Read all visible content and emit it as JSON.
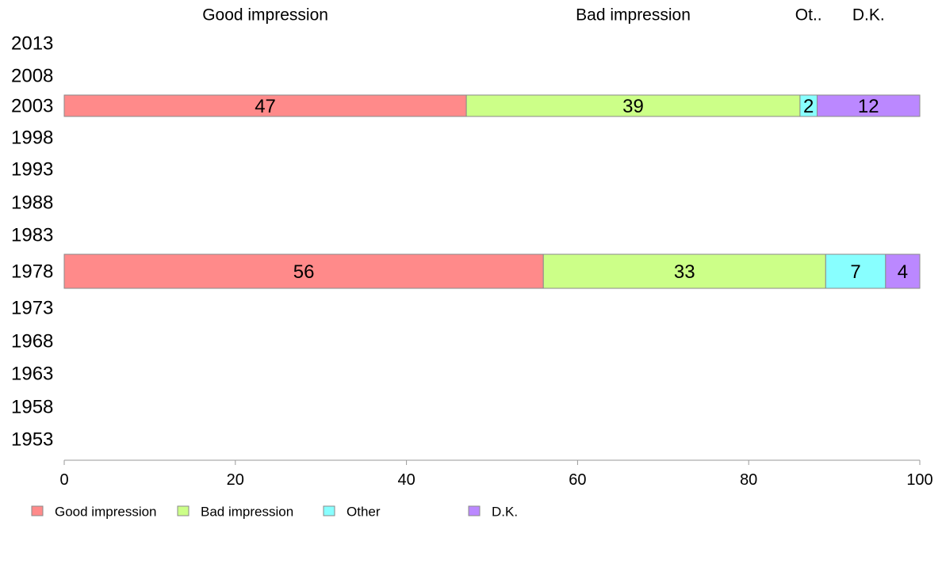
{
  "chart_data": {
    "type": "bar",
    "orientation": "horizontal",
    "stacked": true,
    "categories": [
      "2013",
      "2008",
      "2003",
      "1998",
      "1993",
      "1988",
      "1983",
      "1978",
      "1973",
      "1968",
      "1963",
      "1958",
      "1953"
    ],
    "series": [
      {
        "name": "Good impression",
        "short": "Good impression",
        "color": "#ff8a8a",
        "values": [
          null,
          null,
          47,
          null,
          null,
          null,
          null,
          56,
          null,
          null,
          null,
          null,
          null
        ]
      },
      {
        "name": "Bad impression",
        "short": "Bad impression",
        "color": "#ccff88",
        "values": [
          null,
          null,
          39,
          null,
          null,
          null,
          null,
          33,
          null,
          null,
          null,
          null,
          null
        ]
      },
      {
        "name": "Other",
        "short": "Ot..",
        "color": "#88ffff",
        "values": [
          null,
          null,
          2,
          null,
          null,
          null,
          null,
          7,
          null,
          null,
          null,
          null,
          null
        ]
      },
      {
        "name": "D.K.",
        "short": "D.K.",
        "color": "#bb88ff",
        "values": [
          null,
          null,
          12,
          null,
          null,
          null,
          null,
          4,
          null,
          null,
          null,
          null,
          null
        ]
      }
    ],
    "xlim": [
      0,
      100
    ],
    "xticks": [
      0,
      20,
      40,
      60,
      80,
      100
    ],
    "grid": false,
    "legend_position": "bottom"
  }
}
